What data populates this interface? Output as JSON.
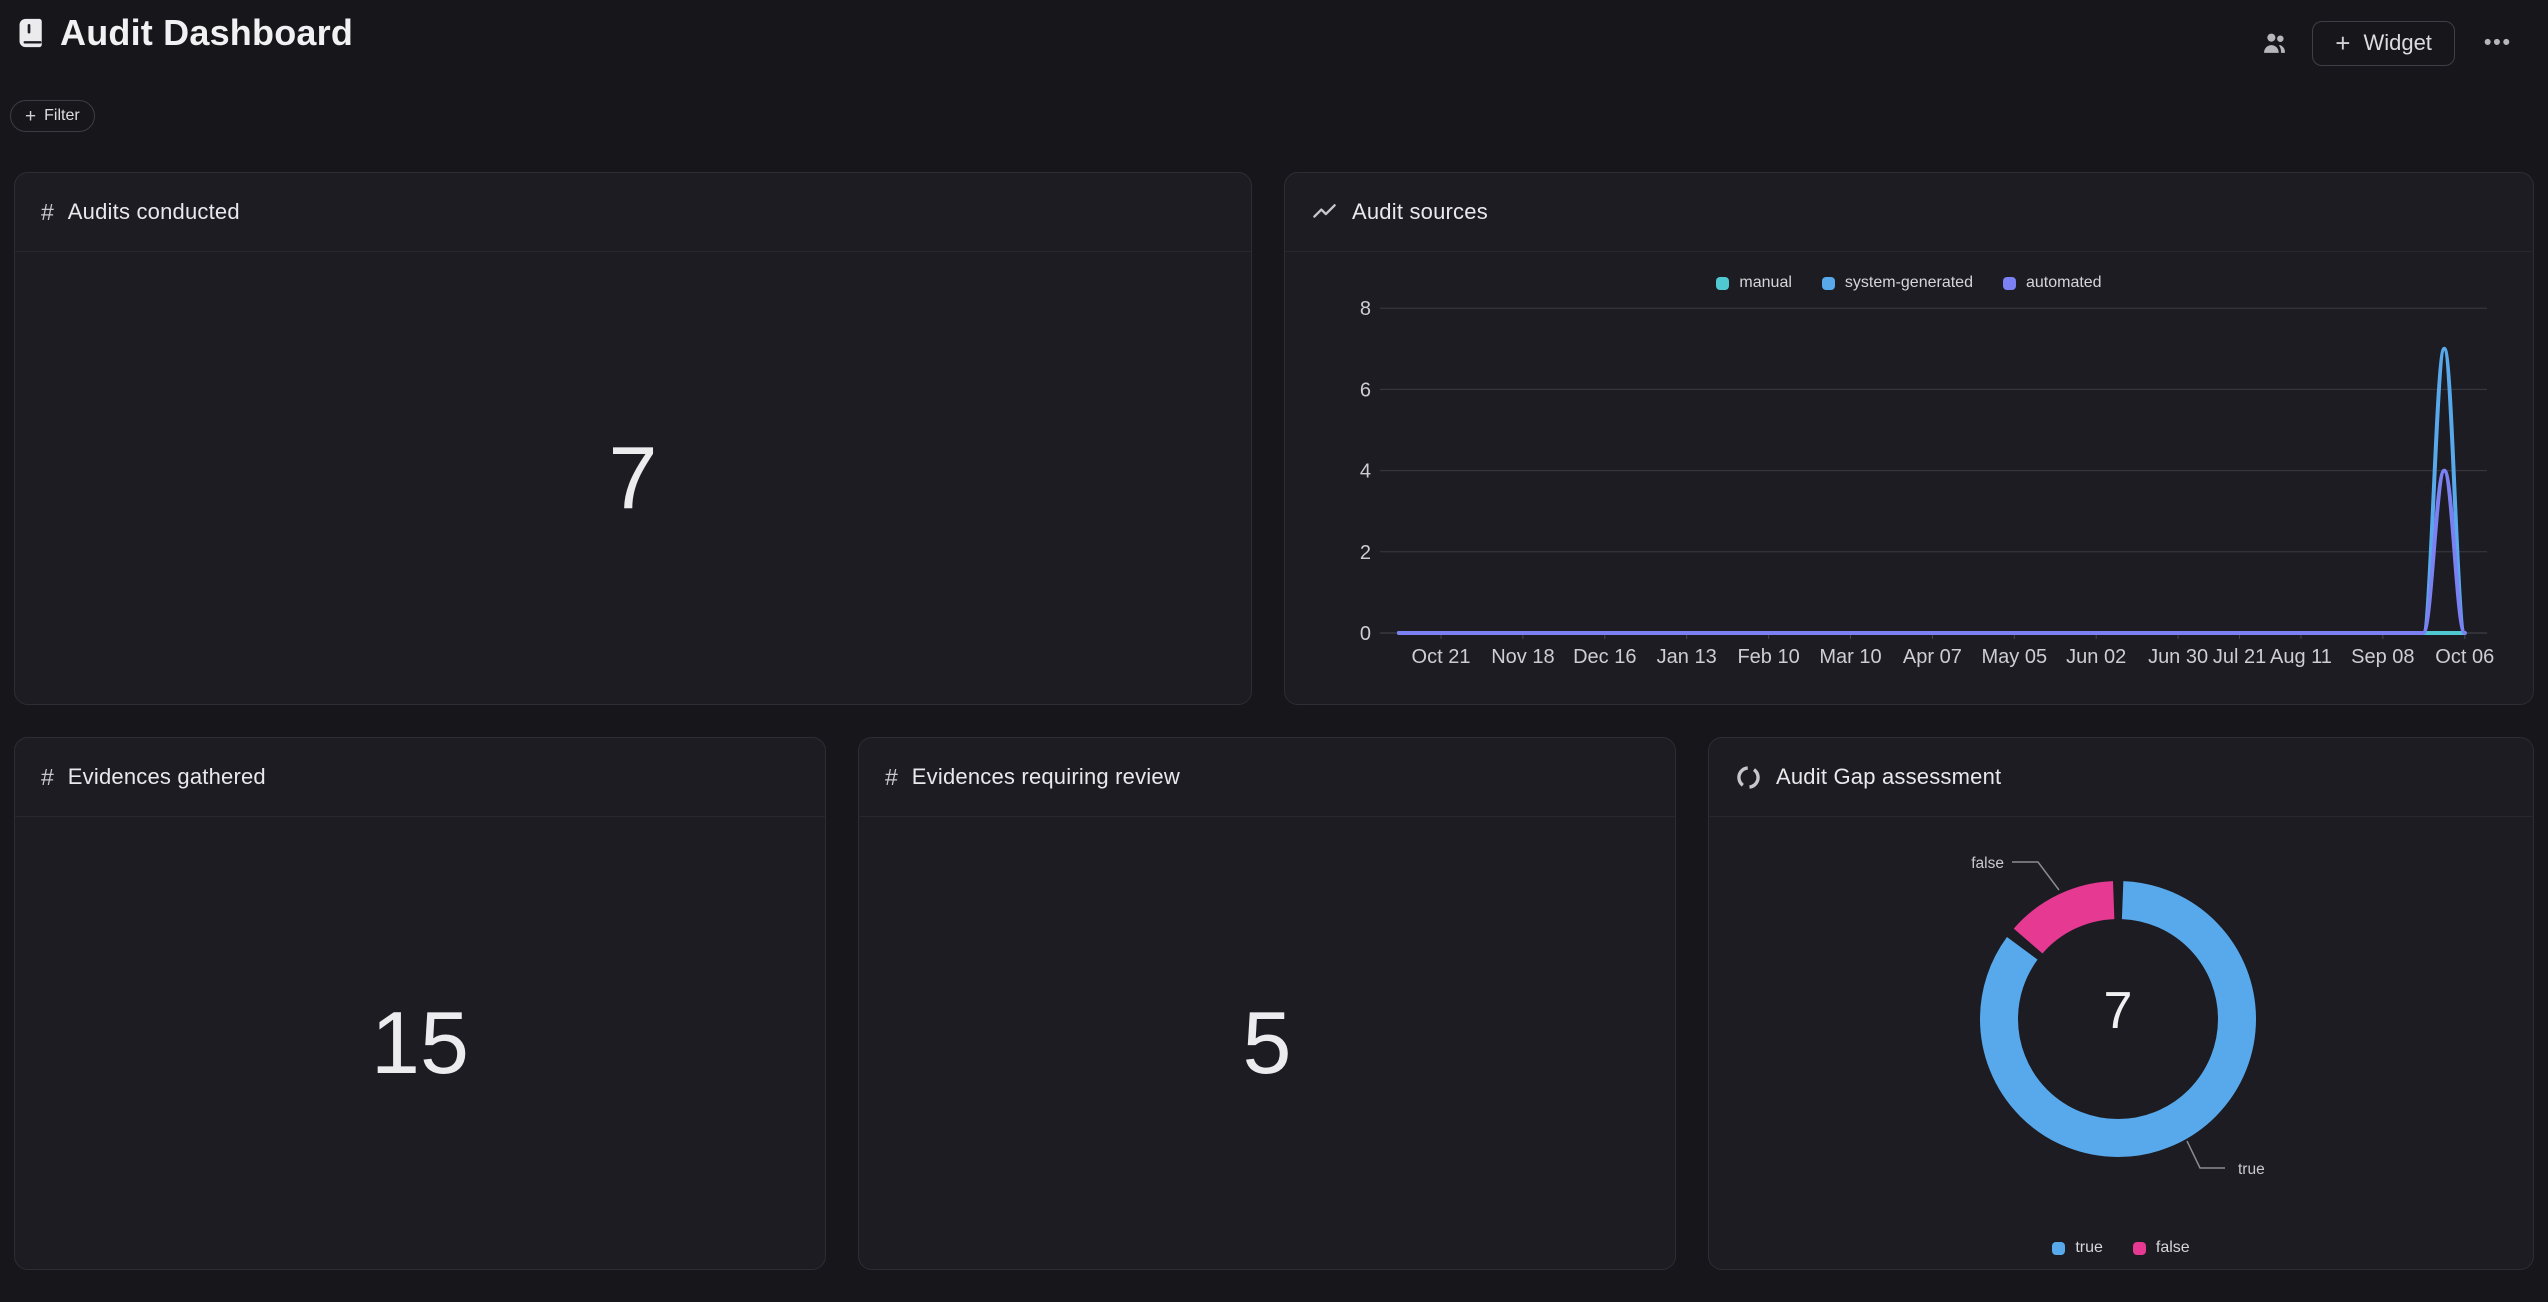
{
  "icons": {
    "plus": "+",
    "more": "•••",
    "hash": "#"
  },
  "header": {
    "title": "Audit Dashboard",
    "widget_button_label": "Widget"
  },
  "toolbar": {
    "filter_label": "Filter"
  },
  "cards": {
    "audits_conducted": {
      "title": "Audits conducted",
      "value": "7"
    },
    "audit_sources": {
      "title": "Audit sources"
    },
    "evidences_gathered": {
      "title": "Evidences gathered",
      "value": "15"
    },
    "evidences_requiring_review": {
      "title": "Evidences requiring review",
      "value": "5"
    },
    "audit_gap": {
      "title": "Audit Gap assessment",
      "center_value": "7"
    }
  },
  "chart_data": [
    {
      "type": "line",
      "card": "Audit sources",
      "legend_position": "top",
      "grid": "horizontal",
      "ylim": [
        0,
        8
      ],
      "yticks": [
        0,
        2,
        4,
        6,
        8
      ],
      "x_tick_labels": [
        "Oct 21",
        "Nov 18",
        "Dec 16",
        "Jan 13",
        "Feb 10",
        "Mar 10",
        "Apr 07",
        "May 05",
        "Jun 02",
        "Jun 30",
        "Jul 21",
        "Aug 11",
        "Sep 08",
        "Oct 06"
      ],
      "x_tick_day_offsets": [
        0,
        28,
        56,
        84,
        112,
        140,
        168,
        196,
        224,
        252,
        273,
        294,
        322,
        350
      ],
      "series": [
        {
          "name": "manual",
          "color": "#4fc8d2",
          "values_at_x_ticks": [
            0,
            0,
            0,
            0,
            0,
            0,
            0,
            0,
            0,
            0,
            0,
            0,
            0,
            0
          ],
          "peak": null
        },
        {
          "name": "system-generated",
          "color": "#58a9ec",
          "values_at_x_ticks": [
            0,
            0,
            0,
            0,
            0,
            0,
            0,
            0,
            0,
            0,
            0,
            0,
            0,
            0
          ],
          "peak": {
            "value": 7,
            "day_offset": 343,
            "approx_date": "Sep 29"
          }
        },
        {
          "name": "automated",
          "color": "#7b80f2",
          "values_at_x_ticks": [
            0,
            0,
            0,
            0,
            0,
            0,
            0,
            0,
            0,
            0,
            0,
            0,
            0,
            0
          ],
          "peak": {
            "value": 4,
            "day_offset": 343,
            "approx_date": "Sep 29"
          }
        }
      ]
    },
    {
      "type": "donut",
      "card": "Audit Gap assessment",
      "center_total": "7",
      "legend_position": "bottom",
      "slices": [
        {
          "label": "true",
          "value": 6,
          "color": "#58a9ec"
        },
        {
          "label": "false",
          "value": 1,
          "color": "#e53992"
        }
      ]
    }
  ]
}
